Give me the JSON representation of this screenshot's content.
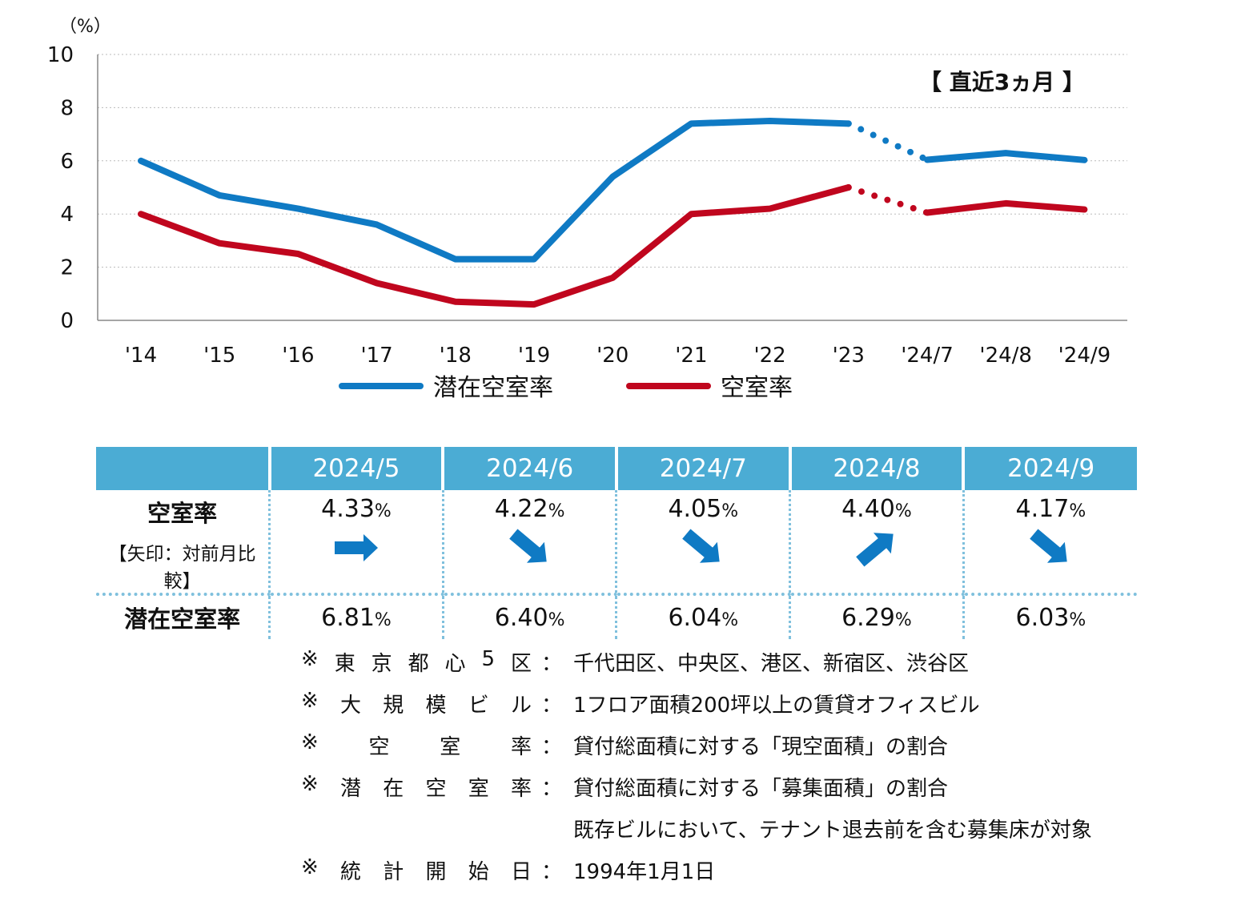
{
  "chart_data": {
    "type": "line",
    "unit_label": "（%）",
    "annotation": "【 直近3ヵ月 】",
    "ylim": [
      0,
      10
    ],
    "yticks": [
      0,
      2,
      4,
      6,
      8,
      10
    ],
    "grid": true,
    "categories": [
      "'14",
      "'15",
      "'16",
      "'17",
      "'18",
      "'19",
      "'20",
      "'21",
      "'22",
      "'23",
      "'24/7",
      "'24/8",
      "'24/9"
    ],
    "series": [
      {
        "name": "潜在空室率",
        "color": "#0f7ac4",
        "values": [
          6.0,
          4.7,
          4.2,
          3.6,
          2.3,
          2.3,
          5.4,
          7.4,
          7.5,
          7.4,
          6.04,
          6.29,
          6.03
        ]
      },
      {
        "name": "空室率",
        "color": "#c0061e",
        "values": [
          4.0,
          2.9,
          2.5,
          1.4,
          0.7,
          0.6,
          1.6,
          4.0,
          4.2,
          5.0,
          4.05,
          4.4,
          4.17
        ]
      }
    ],
    "dotted_segment": {
      "from_index": 9,
      "to_index": 10
    }
  },
  "table": {
    "headers": [
      "",
      "2024/5",
      "2024/6",
      "2024/7",
      "2024/8",
      "2024/9"
    ],
    "vacancy_label": "空室率",
    "vacancy_sublabel": "【矢印：対前月比較】",
    "potential_label": "潜在空室率",
    "pct": "%",
    "vacancy": [
      "4.33",
      "4.22",
      "4.05",
      "4.40",
      "4.17"
    ],
    "arrows": [
      "flat",
      "down",
      "down",
      "up",
      "down"
    ],
    "potential": [
      "6.81",
      "6.40",
      "6.04",
      "6.29",
      "6.03"
    ]
  },
  "notes": [
    {
      "mark": "※",
      "key": "東京都心5区",
      "value": "千代田区、中央区、港区、新宿区、渋谷区"
    },
    {
      "mark": "※",
      "key": "大規模ビル",
      "value": "1フロア面積200坪以上の賃貸オフィスビル"
    },
    {
      "mark": "※",
      "key": "空室率",
      "value": "貸付総面積に対する「現空面積」の割合"
    },
    {
      "mark": "※",
      "key": "潜在空室率",
      "value": "貸付総面積に対する「募集面積」の割合"
    },
    {
      "mark": "",
      "key": "",
      "value": "既存ビルにおいて、テナント退去前を含む募集床が対象"
    },
    {
      "mark": "※",
      "key": "統計開始日",
      "value": "1994年1月1日"
    }
  ],
  "colon": "："
}
